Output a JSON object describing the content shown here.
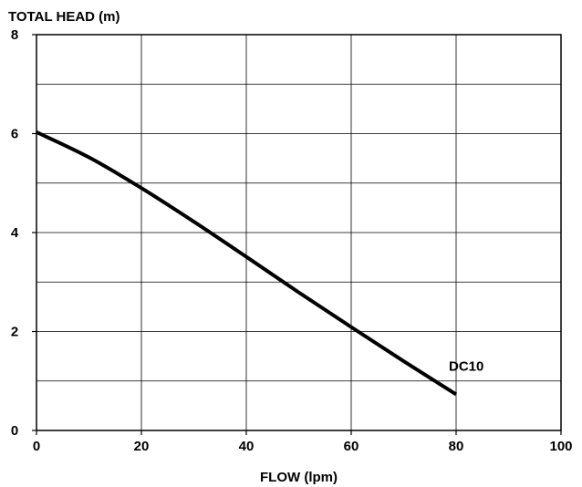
{
  "chart_data": {
    "type": "line",
    "title": "",
    "xlabel": "FLOW (lpm)",
    "ylabel": "TOTAL HEAD (m)",
    "xlim": [
      0,
      100
    ],
    "ylim": [
      0,
      8
    ],
    "x_ticks": [
      0,
      20,
      40,
      60,
      80,
      100
    ],
    "y_ticks": [
      0,
      2,
      4,
      6,
      8
    ],
    "grid": true,
    "legend": "none",
    "series": [
      {
        "name": "DC10",
        "color": "#000000",
        "x": [
          0,
          10,
          20,
          30,
          40,
          50,
          60,
          70,
          80
        ],
        "y": [
          6.03,
          5.52,
          4.9,
          4.22,
          3.51,
          2.79,
          2.09,
          1.4,
          0.73
        ]
      }
    ]
  }
}
